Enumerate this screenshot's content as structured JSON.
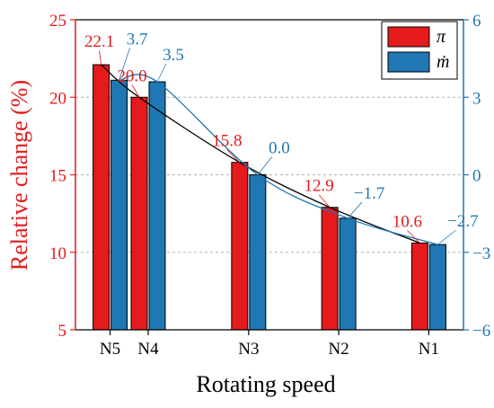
{
  "chart_data": {
    "type": "bar",
    "categories": [
      "N5",
      "N4",
      "N3",
      "N2",
      "N1"
    ],
    "x_positions": [
      1,
      1.55,
      3,
      4.3,
      5.6
    ],
    "xlabel": "Rotating speed",
    "ylabel_left": "Relative change (%)",
    "ylabel_right": "",
    "ylim_left": [
      5,
      25
    ],
    "yticks_left": [
      5,
      10,
      15,
      20,
      25
    ],
    "ylim_right": [
      -6,
      6
    ],
    "yticks_right": [
      -6,
      -3,
      0,
      3,
      6
    ],
    "grid": "horizontal dashed at right-axis ticks",
    "legend_position": "top-right",
    "series": [
      {
        "name": "π",
        "color": "#e41a1c",
        "values": [
          22.1,
          20.0,
          15.8,
          12.9,
          10.6
        ],
        "labels": [
          "22.1",
          "20.0",
          "15.8",
          "12.9",
          "10.6"
        ],
        "axis": "left",
        "trend_line": "black"
      },
      {
        "name": "ṁ",
        "color": "#1f77b4",
        "values": [
          21.1,
          21.0,
          15.0,
          12.2,
          10.5
        ],
        "labels": [
          "3.7",
          "3.5",
          "0.0",
          "−1.7",
          "−2.7"
        ],
        "label_values_right_axis": [
          3.7,
          3.5,
          0.0,
          -1.7,
          -2.7
        ],
        "axis": "left",
        "trend_line": "blue"
      }
    ]
  }
}
